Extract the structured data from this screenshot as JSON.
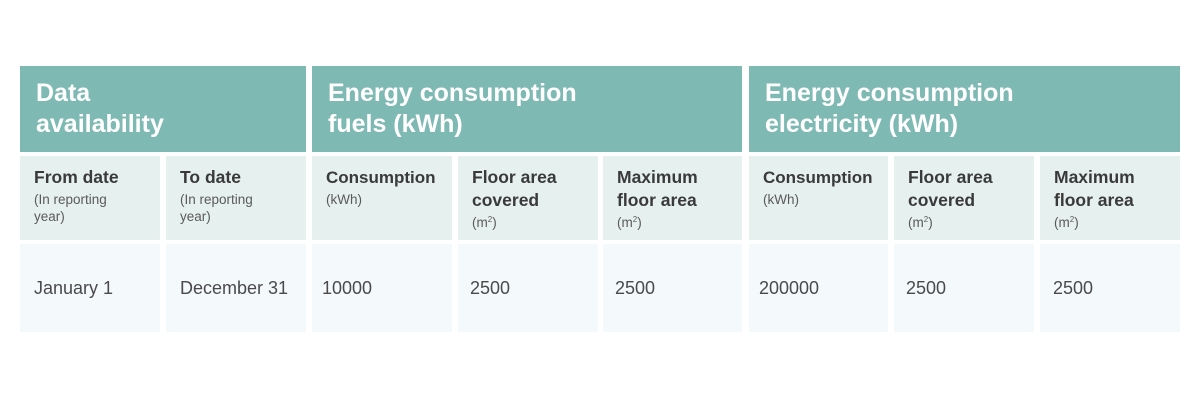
{
  "groups": [
    {
      "label": "Data availability"
    },
    {
      "label": "Energy consumption fuels (kWh)"
    },
    {
      "label": "Energy consumption electricity (kWh)"
    }
  ],
  "columns": [
    {
      "label": "From date",
      "note": "(In reporting year)"
    },
    {
      "label": "To date",
      "note": "(In reporting year)"
    },
    {
      "label": "Consumption",
      "note": "(kWh)"
    },
    {
      "label": "Floor area covered",
      "note": "(m",
      "note_sup": "2",
      "note_end": ")"
    },
    {
      "label": "Maximum floor area",
      "note": "(m",
      "note_sup": "2",
      "note_end": ")"
    },
    {
      "label": "Consumption",
      "note": "(kWh)"
    },
    {
      "label": "Floor area covered",
      "note": "(m",
      "note_sup": "2",
      "note_end": ")"
    },
    {
      "label": "Maximum floor area",
      "note": "(m",
      "note_sup": "2",
      "note_end": ")"
    }
  ],
  "rows": [
    [
      "January 1",
      "December 31",
      "10000",
      "2500",
      "2500",
      "200000",
      "2500",
      "2500"
    ]
  ],
  "colors": {
    "group_header_bg": "#7fb9b4",
    "sub_header_bg": "#e5f0ef",
    "data_bg": "#f4f9fc"
  }
}
